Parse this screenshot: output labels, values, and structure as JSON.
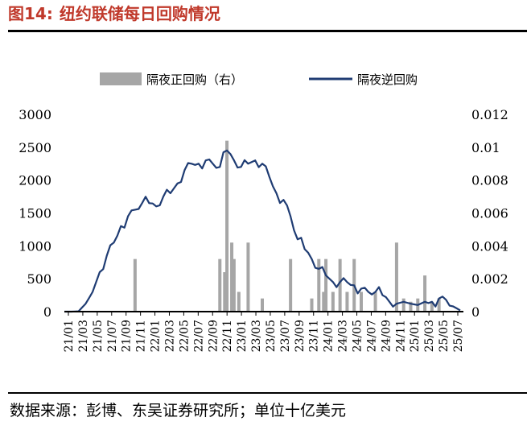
{
  "figure": {
    "number": "图14:",
    "title": "纽约联储每日回购情况",
    "source": "数据来源：彭博、东吴证券研究所；单位十亿美元"
  },
  "colors": {
    "title": "#c0392b",
    "bar": "#a6a6a6",
    "line": "#1f3c73"
  },
  "chart_data": {
    "type": "bar+line",
    "legend": {
      "placement": "top",
      "bar_label": "隔夜正回购（右）",
      "line_label": "隔夜逆回购"
    },
    "y_left": {
      "min": 0,
      "max": 3000,
      "ticks": [
        "0",
        "500",
        "1000",
        "1500",
        "2000",
        "2500",
        "3000"
      ]
    },
    "y_right": {
      "min": 0,
      "max": 0.012,
      "ticks": [
        "0",
        "0.002",
        "0.004",
        "0.006",
        "0.008",
        "0.01",
        "0.012"
      ]
    },
    "x_ticks": [
      "21/01",
      "21/03",
      "21/05",
      "21/07",
      "21/09",
      "21/11",
      "22/01",
      "22/03",
      "22/05",
      "22/07",
      "22/09",
      "22/11",
      "23/01",
      "23/03",
      "23/05",
      "23/07",
      "23/09",
      "23/11",
      "24/01",
      "24/03",
      "24/05",
      "24/07",
      "24/09",
      "24/11",
      "25/01",
      "25/03",
      "25/05",
      "25/07"
    ],
    "x_range": [
      "2021-01",
      "2025-09"
    ],
    "overnight_reverse_repo": [
      [
        "2021-01",
        0
      ],
      [
        "2021-02",
        0
      ],
      [
        "2021-03",
        5
      ],
      [
        "2021-04",
        120
      ],
      [
        "2021-05",
        300
      ],
      [
        "2021-06",
        600
      ],
      [
        "2021-07",
        850
      ],
      [
        "2021-08",
        1050
      ],
      [
        "2021-09",
        1300
      ],
      [
        "2021-10",
        1450
      ],
      [
        "2021-11",
        1550
      ],
      [
        "2021-12",
        1650
      ],
      [
        "2022-01",
        1650
      ],
      [
        "2022-02",
        1600
      ],
      [
        "2022-03",
        1750
      ],
      [
        "2022-04",
        1800
      ],
      [
        "2022-05",
        1950
      ],
      [
        "2022-06",
        2150
      ],
      [
        "2022-07",
        2250
      ],
      [
        "2022-08",
        2250
      ],
      [
        "2022-09",
        2300
      ],
      [
        "2022-10",
        2250
      ],
      [
        "2022-11",
        2200
      ],
      [
        "2022-12",
        2450
      ],
      [
        "2023-01",
        2300
      ],
      [
        "2023-02",
        2200
      ],
      [
        "2023-03",
        2250
      ],
      [
        "2023-04",
        2300
      ],
      [
        "2023-05",
        2250
      ],
      [
        "2023-06",
        2050
      ],
      [
        "2023-07",
        1800
      ],
      [
        "2023-08",
        1700
      ],
      [
        "2023-09",
        1450
      ],
      [
        "2023-10",
        1100
      ],
      [
        "2023-11",
        950
      ],
      [
        "2023-12",
        800
      ],
      [
        "2024-01",
        650
      ],
      [
        "2024-02",
        550
      ],
      [
        "2024-03",
        450
      ],
      [
        "2024-04",
        450
      ],
      [
        "2024-05",
        450
      ],
      [
        "2024-06",
        400
      ],
      [
        "2024-07",
        350
      ],
      [
        "2024-08",
        300
      ],
      [
        "2024-09",
        300
      ],
      [
        "2024-10",
        250
      ],
      [
        "2024-11",
        150
      ],
      [
        "2024-12",
        120
      ],
      [
        "2025-01",
        150
      ],
      [
        "2025-02",
        120
      ],
      [
        "2025-03",
        100
      ],
      [
        "2025-04",
        150
      ],
      [
        "2025-05",
        150
      ],
      [
        "2025-06",
        200
      ],
      [
        "2025-07",
        180
      ],
      [
        "2025-08",
        80
      ],
      [
        "2025-09",
        20
      ]
    ],
    "overnight_repo_right": [
      [
        "2021-11",
        0.0032
      ],
      [
        "2022-11",
        0.0032
      ],
      [
        "2022-11",
        0.0024
      ],
      [
        "2022-12",
        0.0104
      ],
      [
        "2022-12",
        0.0042
      ],
      [
        "2023-01",
        0.0032
      ],
      [
        "2023-01",
        0.0012
      ],
      [
        "2023-03",
        0.0042
      ],
      [
        "2023-05",
        0.0008
      ],
      [
        "2023-09",
        0.0032
      ],
      [
        "2023-12",
        0.0008
      ],
      [
        "2024-01",
        0.0032
      ],
      [
        "2024-01",
        0.0012
      ],
      [
        "2024-02",
        0.0032
      ],
      [
        "2024-03",
        0.0012
      ],
      [
        "2024-04",
        0.0032
      ],
      [
        "2024-05",
        0.0012
      ],
      [
        "2024-06",
        0.0032
      ],
      [
        "2024-07",
        0.0012
      ],
      [
        "2024-09",
        0.0012
      ],
      [
        "2024-12",
        0.0042
      ],
      [
        "2025-01",
        0.0008
      ],
      [
        "2025-02",
        0.0006
      ],
      [
        "2025-03",
        0.0008
      ],
      [
        "2025-04",
        0.0022
      ],
      [
        "2025-05",
        0.0006
      ],
      [
        "2025-06",
        0.0008
      ]
    ]
  }
}
